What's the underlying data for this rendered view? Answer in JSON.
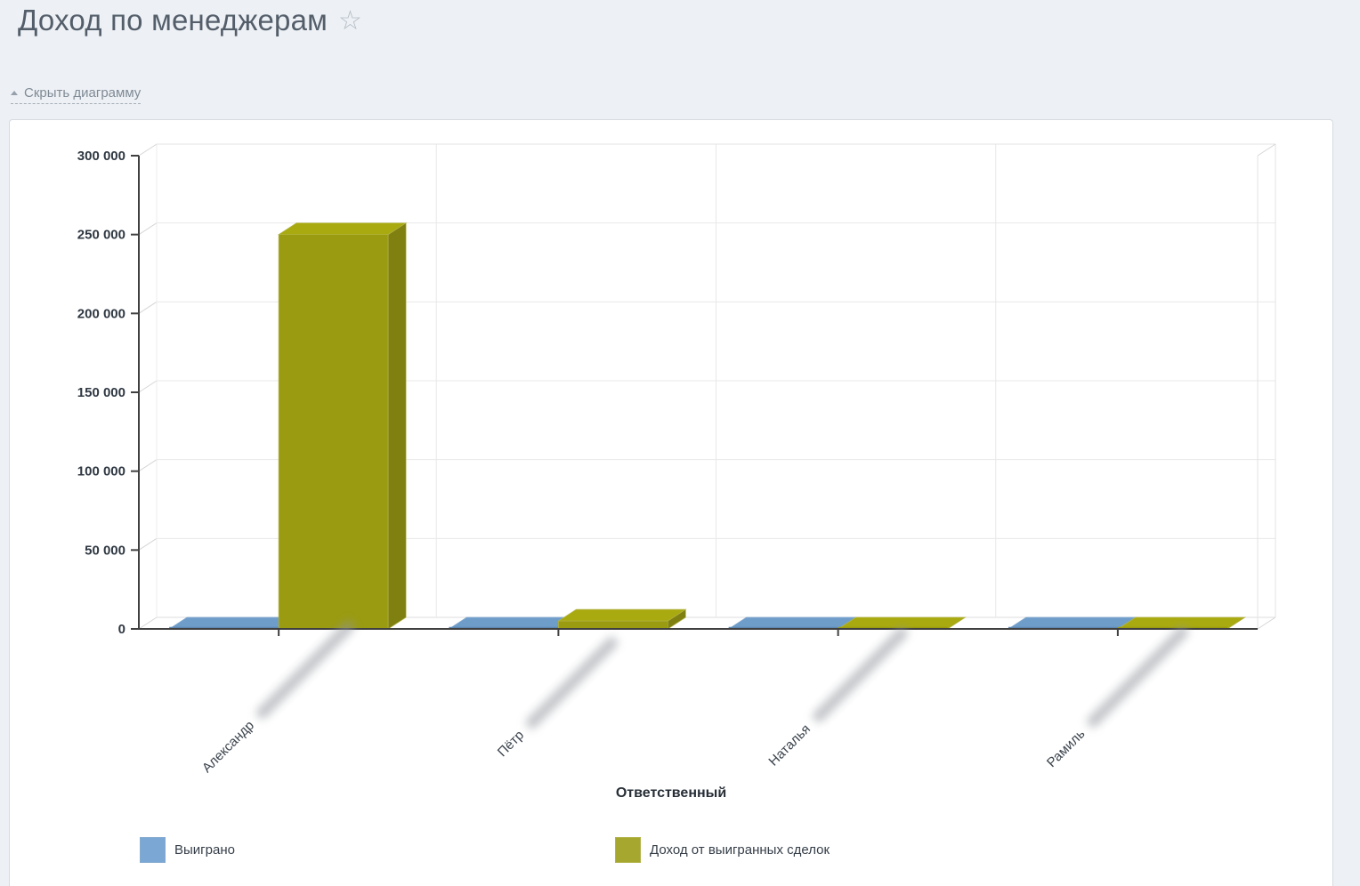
{
  "page": {
    "title": "Доход по менеджерам",
    "favorite_icon": "star-outline-icon"
  },
  "controls": {
    "toggle_diagram": "Скрыть диаграмму",
    "toggle_icon": "chevron-up-icon"
  },
  "chart_data": {
    "type": "bar",
    "style": "3d-columns",
    "title": "",
    "xlabel": "Ответственный",
    "categories": [
      "Александр",
      "Пётр",
      "Наталья",
      "Рамиль"
    ],
    "surnames_blurred": true,
    "series": [
      {
        "name": "Выиграно",
        "values": [
          0,
          0,
          0,
          0
        ],
        "colors": {
          "legend": "#7ba7d4",
          "top": "#6f9dca",
          "front": "#5d87b2",
          "side": "#4f7aa5",
          "edge": "#85abd0"
        }
      },
      {
        "name": "Доход от выигранных сделок",
        "values": [
          250000,
          5000,
          1000,
          500
        ],
        "colors": {
          "legend": "#a5a72f",
          "top": "#a9aa0f",
          "front": "#9a9b10",
          "side": "#7f8010",
          "edge": "#b2b34a"
        }
      }
    ],
    "ylim": [
      0,
      300000
    ],
    "ytick_step": 50000,
    "ytick_labels": [
      "0",
      "50 000",
      "100 000",
      "150 000",
      "200 000",
      "250 000",
      "300 000"
    ],
    "grid": true,
    "legend_position": "bottom"
  },
  "colors": {
    "page_bg": "#edf1f5",
    "card_bg": "#ffffff",
    "card_border": "#d5dbe0",
    "axis": "#404040",
    "grid_line": "#e8e8e8",
    "title_text": "#545e6a",
    "link_text": "#808a95"
  }
}
